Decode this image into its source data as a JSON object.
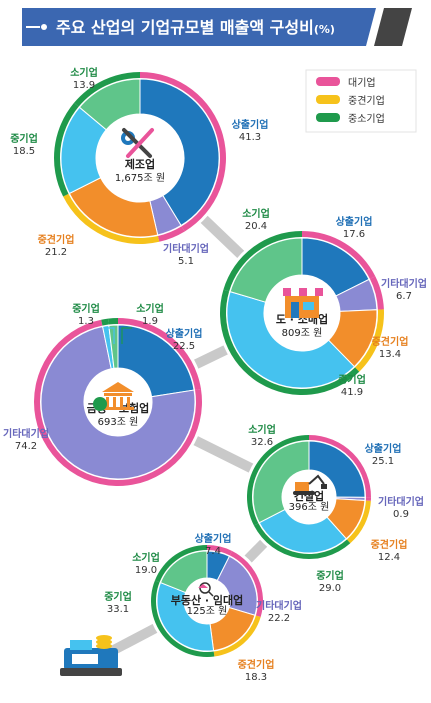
{
  "title": "주요 산업의 기업규모별 매출액 구성비",
  "title_unit": "(%)",
  "legend": [
    {
      "label": "대기업",
      "color": "#e9549a"
    },
    {
      "label": "중견기업",
      "color": "#f6c21b"
    },
    {
      "label": "중소기업",
      "color": "#1f9a4c"
    }
  ],
  "colors": {
    "상출기업": "#1f78bc",
    "기타대기업": "#8a8ad3",
    "중견기업": "#f28e2b",
    "중기업": "#45c2ef",
    "소기업": "#5fc58a",
    "outer_large": "#e9549a",
    "outer_mid": "#f6c21b",
    "outer_small": "#1f9a4c",
    "label_large": "#1f6fb5",
    "label_etc": "#6666bb",
    "label_mid": "#e6801f",
    "label_small": "#1e8a45"
  },
  "chart_data": [
    {
      "type": "pie",
      "industry": "제조업",
      "total": "1,675조 원",
      "categories": [
        "상출기업",
        "기타대기업",
        "중견기업",
        "중기업",
        "소기업"
      ],
      "values": [
        41.3,
        5.1,
        21.2,
        18.5,
        13.9
      ]
    },
    {
      "type": "pie",
      "industry": "도 · 소매업",
      "total": "809조 원",
      "categories": [
        "상출기업",
        "기타대기업",
        "중견기업",
        "중기업",
        "소기업"
      ],
      "values": [
        17.6,
        6.7,
        13.4,
        41.9,
        20.4
      ]
    },
    {
      "type": "pie",
      "industry": "금융 · 보험업",
      "total": "693조 원",
      "categories": [
        "상출기업",
        "기타대기업",
        "중견기업",
        "중기업",
        "소기업"
      ],
      "values": [
        22.5,
        74.2,
        0,
        1.3,
        1.9
      ]
    },
    {
      "type": "pie",
      "industry": "건설업",
      "total": "396조 원",
      "categories": [
        "상출기업",
        "기타대기업",
        "중견기업",
        "중기업",
        "소기업"
      ],
      "values": [
        25.1,
        0.9,
        12.4,
        29.0,
        32.6
      ]
    },
    {
      "type": "pie",
      "industry": "부동산 · 임대업",
      "total": "125조 원",
      "categories": [
        "상출기업",
        "기타대기업",
        "중견기업",
        "중기업",
        "소기업"
      ],
      "values": [
        7.4,
        22.2,
        18.3,
        33.1,
        19.0
      ]
    }
  ]
}
